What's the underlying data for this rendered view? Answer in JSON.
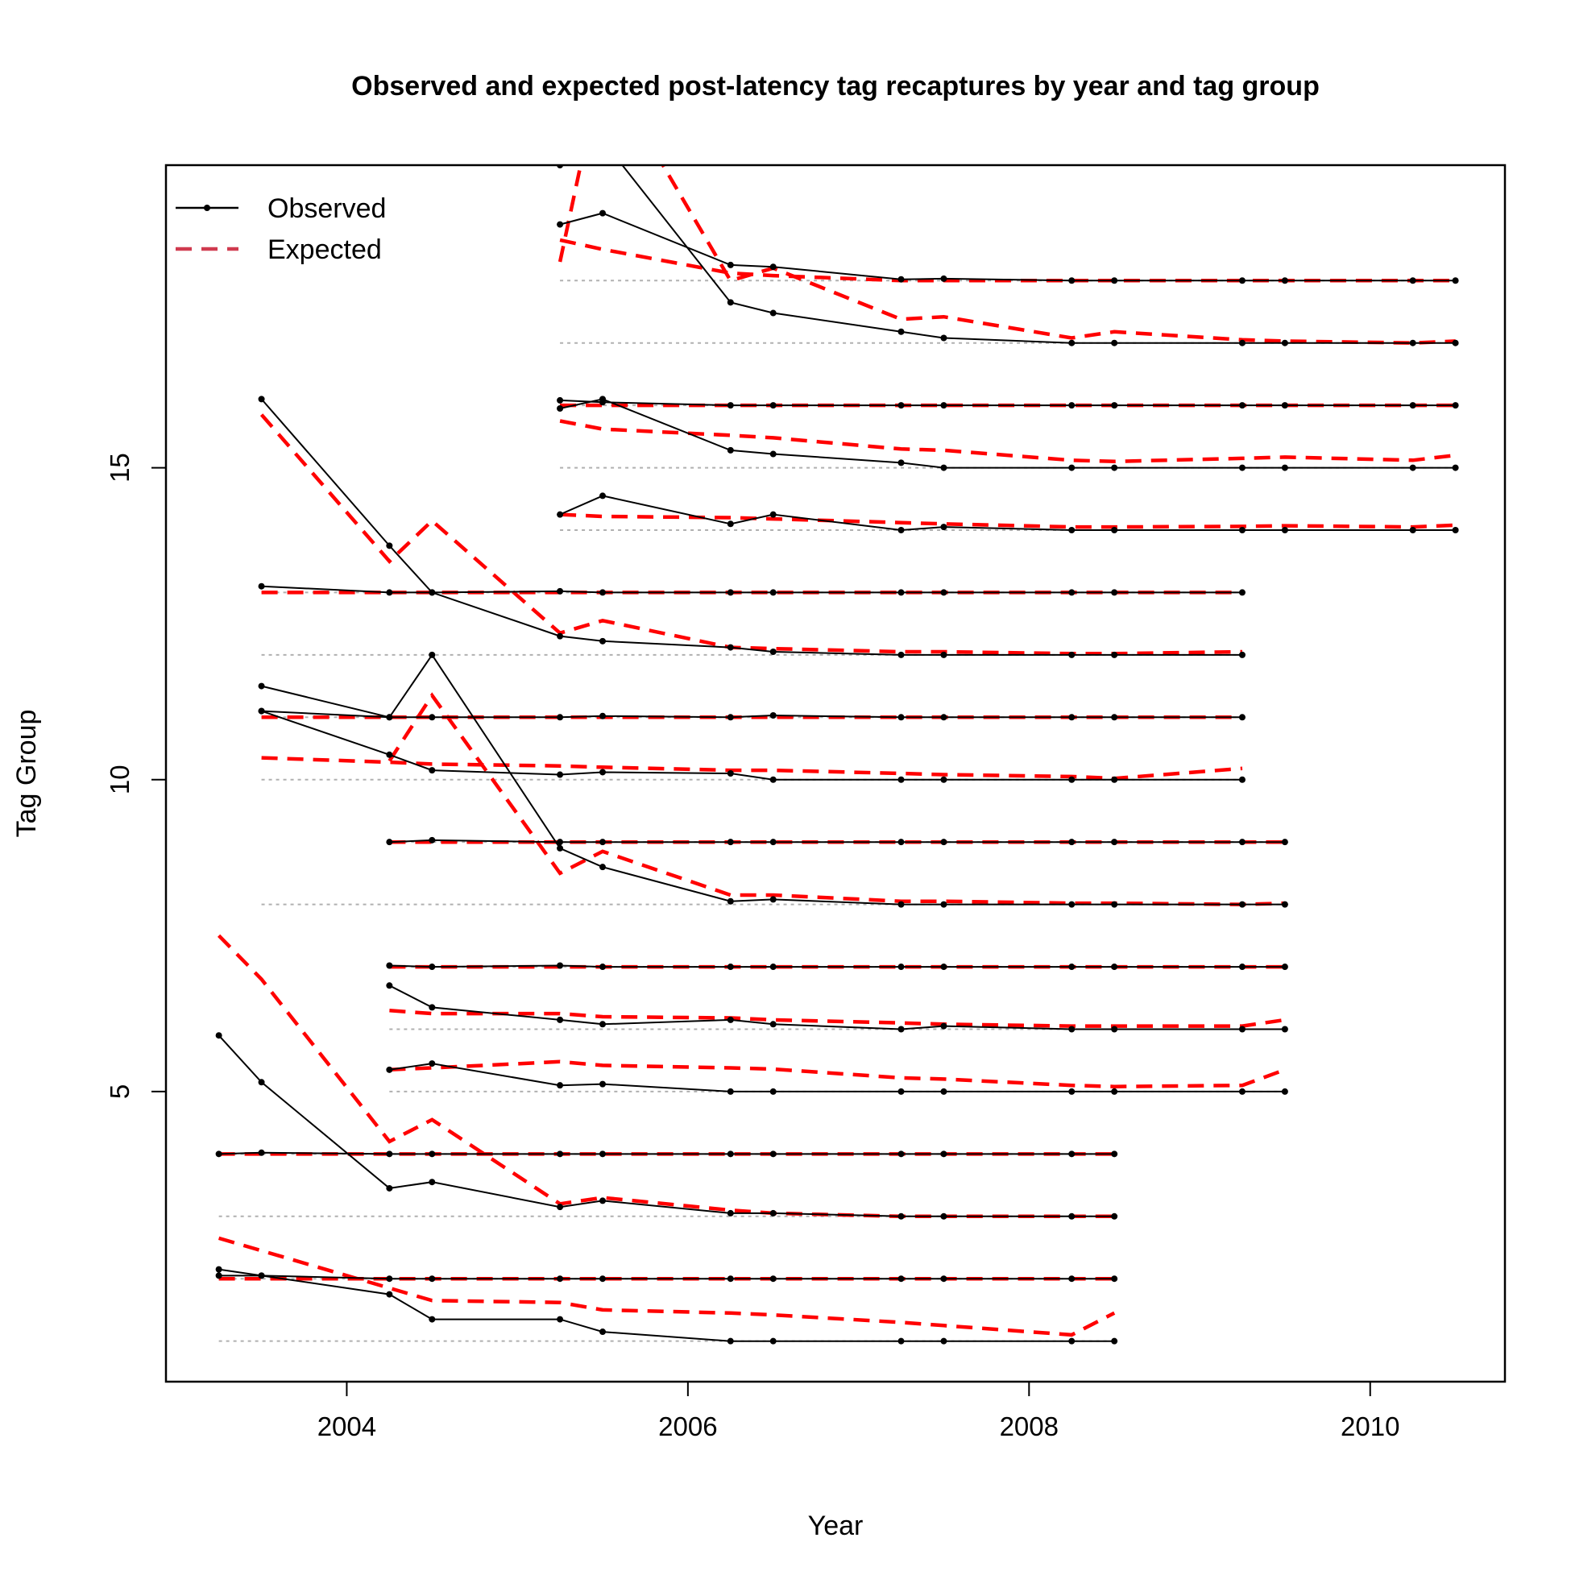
{
  "chart_data": {
    "type": "line",
    "title": "Observed and expected post-latency tag recaptures by year and tag group",
    "xlabel": "Year",
    "ylabel": "Tag Group",
    "xlim": [
      2002.94,
      2010.79
    ],
    "ylim": [
      0.35,
      19.85
    ],
    "x_ticks": [
      2004,
      2006,
      2008,
      2010
    ],
    "x_tick_labels": [
      "2004",
      "2006",
      "2008",
      "2010"
    ],
    "y_ticks": [
      5,
      10,
      15
    ],
    "y_tick_labels": [
      "5",
      "10",
      "15"
    ],
    "legend": {
      "position": "top-left",
      "entries": [
        {
          "label": "Observed",
          "color": "#000000",
          "style": "solid-points"
        },
        {
          "label": "Expected",
          "color": "#d03a4f",
          "style": "dashed"
        }
      ]
    },
    "colors": {
      "observed": "#000000",
      "expected": "#ff0000",
      "baseline": "#b0b0b0"
    },
    "groups": [
      {
        "group": 1,
        "x": [
          2003.25,
          2003.5,
          2004.25,
          2004.5,
          2005.25,
          2005.5,
          2006.25,
          2006.5,
          2007.25,
          2007.5,
          2008.25,
          2008.5
        ],
        "observed": [
          2.15,
          2.05,
          1.75,
          1.35,
          1.35,
          1.15,
          1.0,
          1.0,
          1.0,
          1.0,
          1.0,
          1.0
        ],
        "expected": [
          2.65,
          2.45,
          1.85,
          1.65,
          1.62,
          1.5,
          1.45,
          1.42,
          1.3,
          1.25,
          1.1,
          1.45
        ]
      },
      {
        "group": 2,
        "x": [
          2003.25,
          2003.5,
          2004.25,
          2004.5,
          2005.25,
          2005.5,
          2006.25,
          2006.5,
          2007.25,
          2007.5,
          2008.25,
          2008.5
        ],
        "observed": [
          2.05,
          2.05,
          2.0,
          2.0,
          2.0,
          2.0,
          2.0,
          2.0,
          2.0,
          2.0,
          2.0,
          2.0
        ],
        "expected": [
          2.0,
          2.0,
          2.0,
          2.0,
          2.0,
          2.0,
          2.0,
          2.0,
          2.0,
          2.0,
          2.0,
          2.0
        ]
      },
      {
        "group": 3,
        "x": [
          2003.25,
          2003.5,
          2004.25,
          2004.5,
          2005.25,
          2005.5,
          2006.25,
          2006.5,
          2007.25,
          2007.5,
          2008.25,
          2008.5
        ],
        "observed": [
          5.9,
          5.15,
          3.45,
          3.55,
          3.15,
          3.25,
          3.05,
          3.05,
          3.0,
          3.0,
          3.0,
          3.0
        ],
        "expected": [
          7.5,
          6.8,
          4.2,
          4.55,
          3.2,
          3.3,
          3.1,
          3.05,
          3.0,
          3.0,
          3.0,
          3.0
        ]
      },
      {
        "group": 4,
        "x": [
          2003.25,
          2003.5,
          2004.25,
          2004.5,
          2005.25,
          2005.5,
          2006.25,
          2006.5,
          2007.25,
          2007.5,
          2008.25,
          2008.5
        ],
        "observed": [
          4.0,
          4.02,
          4.0,
          4.0,
          4.0,
          4.0,
          4.0,
          4.0,
          4.0,
          4.0,
          4.0,
          4.0
        ],
        "expected": [
          4.0,
          4.0,
          4.0,
          4.0,
          4.0,
          4.0,
          4.0,
          4.0,
          4.0,
          4.0,
          4.0,
          4.0
        ]
      },
      {
        "group": 5,
        "x": [
          2004.25,
          2004.5,
          2005.25,
          2005.5,
          2006.25,
          2006.5,
          2007.25,
          2007.5,
          2008.25,
          2008.5,
          2009.25,
          2009.5
        ],
        "observed": [
          5.35,
          5.45,
          5.1,
          5.12,
          5.0,
          5.0,
          5.0,
          5.0,
          5.0,
          5.0,
          5.0,
          5.0
        ],
        "expected": [
          5.35,
          5.38,
          5.48,
          5.42,
          5.38,
          5.36,
          5.22,
          5.2,
          5.1,
          5.08,
          5.1,
          5.35
        ]
      },
      {
        "group": 6,
        "x": [
          2004.25,
          2004.5,
          2005.25,
          2005.5,
          2006.25,
          2006.5,
          2007.25,
          2007.5,
          2008.25,
          2008.5,
          2009.25,
          2009.5
        ],
        "observed": [
          6.7,
          6.35,
          6.15,
          6.08,
          6.15,
          6.08,
          6.0,
          6.05,
          6.0,
          6.0,
          6.0,
          6.0
        ],
        "expected": [
          6.3,
          6.25,
          6.25,
          6.2,
          6.18,
          6.15,
          6.1,
          6.08,
          6.05,
          6.05,
          6.05,
          6.15
        ]
      },
      {
        "group": 7,
        "x": [
          2004.25,
          2004.5,
          2005.25,
          2005.5,
          2006.25,
          2006.5,
          2007.25,
          2007.5,
          2008.25,
          2008.5,
          2009.25,
          2009.5
        ],
        "observed": [
          7.02,
          7.0,
          7.02,
          7.0,
          7.0,
          7.0,
          7.0,
          7.0,
          7.0,
          7.0,
          7.0,
          7.0
        ],
        "expected": [
          7.0,
          7.0,
          7.0,
          7.0,
          7.0,
          7.0,
          7.0,
          7.0,
          7.0,
          7.0,
          7.0,
          7.0
        ]
      },
      {
        "group": 8,
        "x": [
          2003.5,
          2004.25,
          2004.5,
          2005.25,
          2005.5,
          2006.25,
          2006.5,
          2007.25,
          2007.5,
          2008.25,
          2008.5,
          2009.25,
          2009.5
        ],
        "observed": [
          11.5,
          11.0,
          12.0,
          8.9,
          8.6,
          8.05,
          8.08,
          8.0,
          8.0,
          8.0,
          8.0,
          8.0,
          8.0
        ],
        "expected": [
          null,
          10.3,
          11.35,
          8.5,
          8.85,
          8.15,
          8.15,
          8.05,
          8.05,
          8.02,
          8.02,
          8.0,
          8.02
        ]
      },
      {
        "group": 9,
        "x": [
          2004.25,
          2004.5,
          2005.25,
          2005.5,
          2006.25,
          2006.5,
          2007.25,
          2007.5,
          2008.25,
          2008.5,
          2009.25,
          2009.5
        ],
        "observed": [
          9.0,
          9.03,
          9.0,
          9.0,
          9.0,
          9.0,
          9.0,
          9.0,
          9.0,
          9.0,
          9.0,
          9.0
        ],
        "expected": [
          9.0,
          9.0,
          9.0,
          9.0,
          9.0,
          9.0,
          9.0,
          9.0,
          9.0,
          9.0,
          9.0,
          9.0
        ]
      },
      {
        "group": 10,
        "x": [
          2003.5,
          2004.25,
          2004.5,
          2005.25,
          2005.5,
          2006.25,
          2006.5,
          2007.25,
          2007.5,
          2008.25,
          2008.5,
          2009.25
        ],
        "observed": [
          11.1,
          10.4,
          10.15,
          10.08,
          10.12,
          10.1,
          10.0,
          10.0,
          10.0,
          10.0,
          10.0,
          10.0
        ],
        "expected": [
          10.35,
          10.28,
          10.25,
          10.22,
          10.2,
          10.15,
          10.15,
          10.1,
          10.08,
          10.05,
          10.02,
          10.18
        ]
      },
      {
        "group": 11,
        "x": [
          2003.5,
          2004.25,
          2004.5,
          2005.25,
          2005.5,
          2006.25,
          2006.5,
          2007.25,
          2007.5,
          2008.25,
          2008.5,
          2009.25
        ],
        "observed": [
          11.1,
          11.0,
          11.0,
          11.0,
          11.02,
          11.0,
          11.03,
          11.0,
          11.0,
          11.0,
          11.0,
          11.0
        ],
        "expected": [
          11.0,
          11.0,
          11.0,
          11.0,
          11.0,
          11.0,
          11.0,
          11.0,
          11.0,
          11.0,
          11.0,
          11.0
        ]
      },
      {
        "group": 12,
        "x": [
          2003.5,
          2004.25,
          2004.5,
          2005.25,
          2005.5,
          2006.25,
          2006.5,
          2007.25,
          2007.5,
          2008.25,
          2008.5,
          2009.25
        ],
        "observed": [
          16.1,
          13.75,
          13.0,
          12.3,
          12.22,
          12.12,
          12.05,
          12.0,
          12.0,
          12.0,
          12.0,
          12.0
        ],
        "expected": [
          15.85,
          13.5,
          14.15,
          12.35,
          12.55,
          12.12,
          12.1,
          12.05,
          12.05,
          12.02,
          12.02,
          12.05
        ]
      },
      {
        "group": 13,
        "x": [
          2003.5,
          2004.25,
          2004.5,
          2005.25,
          2005.5,
          2006.25,
          2006.5,
          2007.25,
          2007.5,
          2008.25,
          2008.5,
          2009.25
        ],
        "observed": [
          13.1,
          13.0,
          13.0,
          13.02,
          13.0,
          13.0,
          13.0,
          13.0,
          13.0,
          13.0,
          13.0,
          13.0
        ],
        "expected": [
          13.0,
          13.0,
          13.0,
          13.0,
          13.0,
          13.0,
          13.0,
          13.0,
          13.0,
          13.0,
          13.0,
          13.0
        ]
      },
      {
        "group": 14,
        "x": [
          2005.25,
          2005.5,
          2006.25,
          2006.5,
          2007.25,
          2007.5,
          2008.25,
          2008.5,
          2009.25,
          2009.5,
          2010.25,
          2010.5
        ],
        "observed": [
          14.25,
          14.55,
          14.1,
          14.25,
          14.0,
          14.05,
          14.0,
          14.0,
          14.0,
          14.0,
          14.0,
          14.0
        ],
        "expected": [
          14.25,
          14.22,
          14.2,
          14.18,
          14.12,
          14.1,
          14.05,
          14.05,
          14.06,
          14.07,
          14.05,
          14.08
        ]
      },
      {
        "group": 15,
        "x": [
          2005.25,
          2005.5,
          2006.25,
          2006.5,
          2007.25,
          2007.5,
          2008.25,
          2008.5,
          2009.25,
          2009.5,
          2010.25,
          2010.5
        ],
        "observed": [
          15.95,
          16.1,
          15.28,
          15.22,
          15.08,
          15.0,
          15.0,
          15.0,
          15.0,
          15.0,
          15.0,
          15.0
        ],
        "expected": [
          15.75,
          15.62,
          15.52,
          15.48,
          15.3,
          15.28,
          15.12,
          15.1,
          15.15,
          15.17,
          15.12,
          15.2
        ]
      },
      {
        "group": 16,
        "x": [
          2005.25,
          2005.5,
          2006.25,
          2006.5,
          2007.25,
          2007.5,
          2008.25,
          2008.5,
          2009.25,
          2009.5,
          2010.25,
          2010.5
        ],
        "observed": [
          16.08,
          16.05,
          16.0,
          16.0,
          16.0,
          16.0,
          16.0,
          16.0,
          16.0,
          16.0,
          16.0,
          16.0
        ],
        "expected": [
          16.0,
          16.0,
          16.0,
          16.0,
          16.0,
          16.0,
          16.0,
          16.0,
          16.0,
          16.0,
          16.0,
          16.0
        ]
      },
      {
        "group": 17,
        "x": [
          2005.25,
          2005.5,
          2006.25,
          2006.5,
          2007.25,
          2007.5,
          2008.25,
          2008.5,
          2009.25,
          2009.5,
          2010.25,
          2010.5
        ],
        "observed": [
          19.85,
          20.25,
          17.65,
          17.48,
          17.18,
          17.08,
          17.0,
          17.0,
          17.0,
          17.0,
          17.0,
          17.0
        ],
        "expected": [
          18.3,
          21.5,
          18.0,
          18.2,
          17.38,
          17.42,
          17.08,
          17.18,
          17.05,
          17.03,
          17.0,
          17.03
        ]
      },
      {
        "group": 18,
        "x": [
          2005.25,
          2005.5,
          2006.25,
          2006.5,
          2007.25,
          2007.5,
          2008.25,
          2008.5,
          2009.25,
          2009.5,
          2010.25,
          2010.5
        ],
        "observed": [
          18.9,
          19.08,
          18.25,
          18.22,
          18.02,
          18.03,
          18.0,
          18.0,
          18.0,
          18.0,
          18.0,
          18.0
        ],
        "expected": [
          18.65,
          18.5,
          18.12,
          18.08,
          18.0,
          18.0,
          18.0,
          18.0,
          18.0,
          18.0,
          18.0,
          18.0
        ]
      }
    ]
  }
}
